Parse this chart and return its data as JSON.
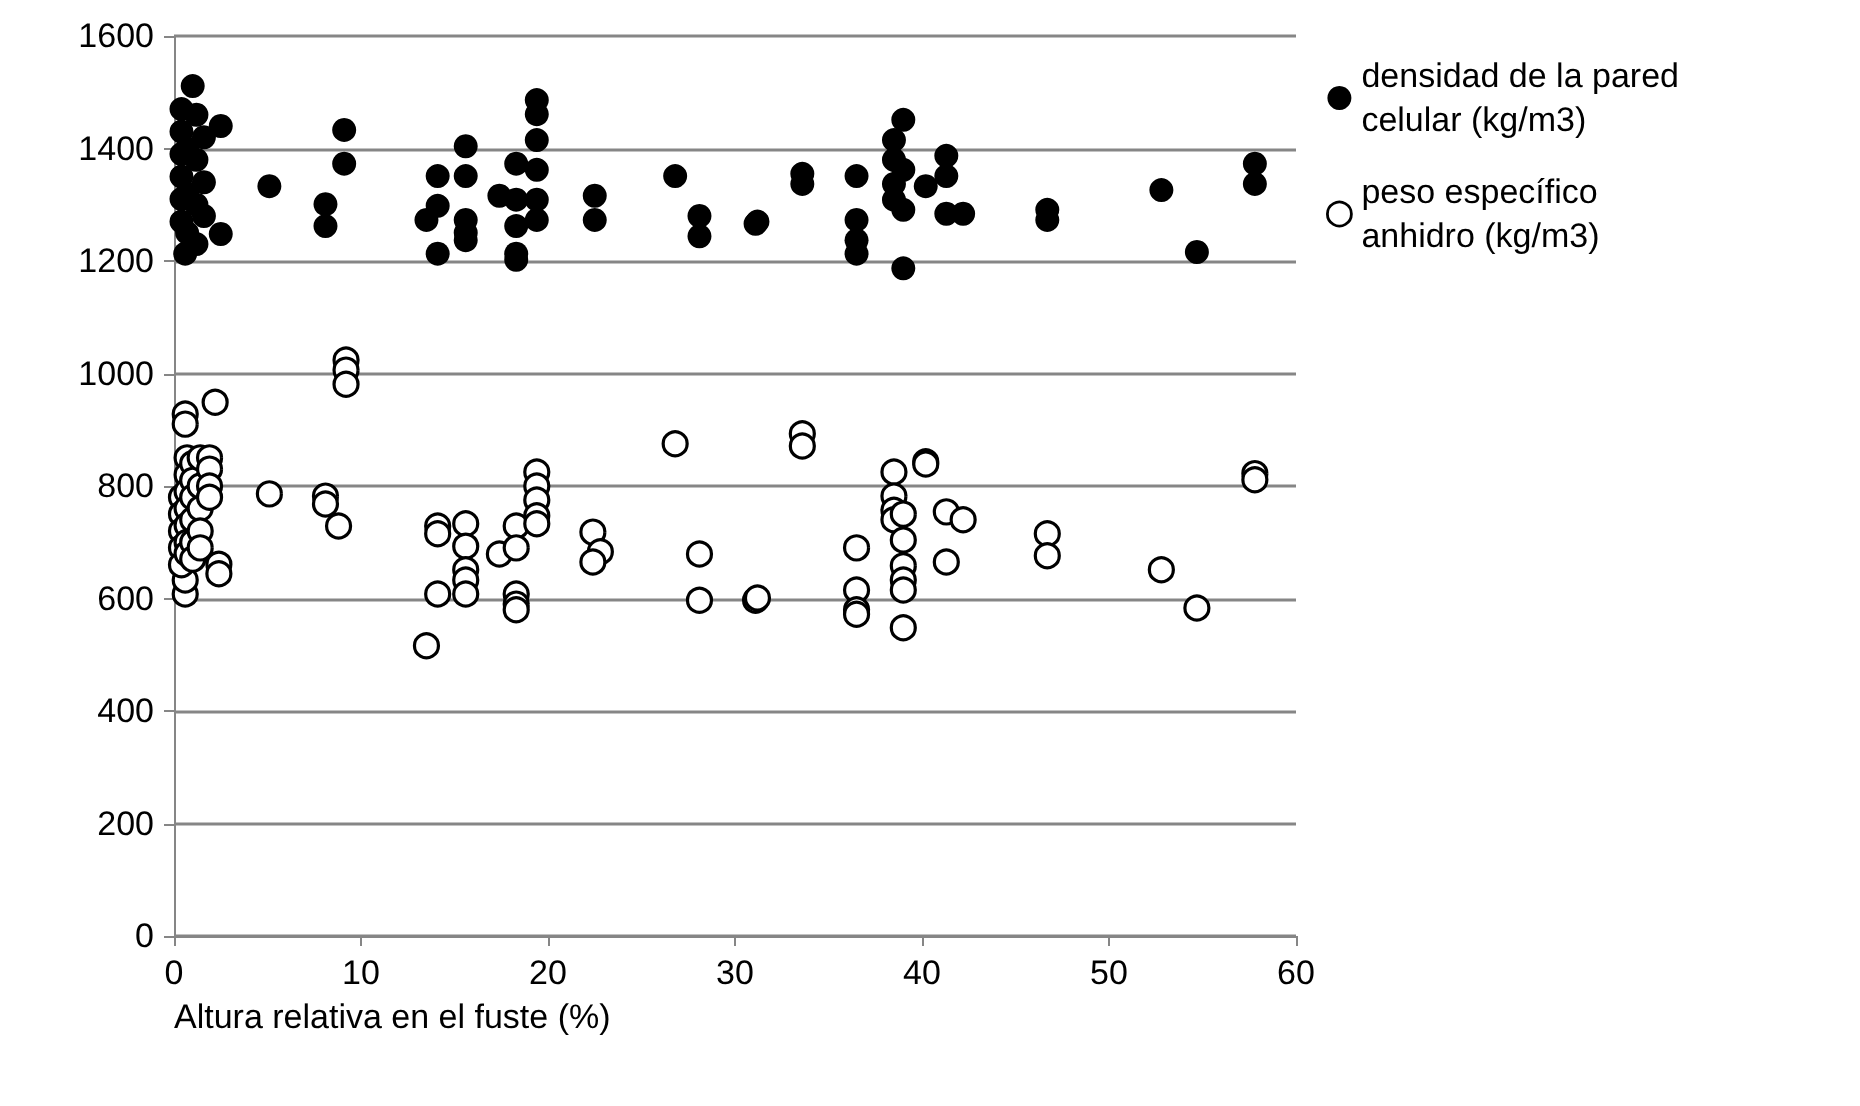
{
  "chart_data": {
    "type": "scatter",
    "xlabel": "Altura relativa en el fuste (%)",
    "xlim": [
      0,
      60
    ],
    "xticks": [
      0,
      10,
      20,
      30,
      40,
      50,
      60
    ],
    "ylim": [
      0,
      1600
    ],
    "yticks": [
      0,
      200,
      400,
      600,
      800,
      {
        "value": 1000,
        "label": "1000"
      },
      {
        "value": 1200,
        "label": "1200"
      },
      {
        "value": 1400,
        "label": "1400"
      },
      {
        "value": 1600,
        "label": "1600"
      }
    ],
    "grid": "y",
    "legend": "top right",
    "marker": "circle",
    "series": [
      {
        "name": "densidad de la pared celular (kg/m3)",
        "color": "#000000",
        "x": [
          0.6,
          0.4,
          0.4,
          0.4,
          0.4,
          0.4,
          0.4,
          1.0,
          0.7,
          0.7,
          0.7,
          1.2,
          1.2,
          1.2,
          1.2,
          1.6,
          1.6,
          1.6,
          2.5,
          2.5,
          5.1,
          9.1,
          9.1,
          8.1,
          8.1,
          14.1,
          14.1,
          13.5,
          14.1,
          15.6,
          15.6,
          15.6,
          15.6,
          15.6,
          17.4,
          18.3,
          18.3,
          18.3,
          18.3,
          18.3,
          19.4,
          19.4,
          19.4,
          19.4,
          19.4,
          19.4,
          22.5,
          22.5,
          26.8,
          28.1,
          28.1,
          31.1,
          31.2,
          33.6,
          33.6,
          36.5,
          36.5,
          36.5,
          36.5,
          38.5,
          38.5,
          38.5,
          38.5,
          39.0,
          39.0,
          39.0,
          39.0,
          40.2,
          41.3,
          41.3,
          41.3,
          42.2,
          46.7,
          46.7,
          52.8,
          54.7,
          57.8,
          57.8
        ],
        "values": [
          1213,
          1270,
          1310,
          1350,
          1390,
          1430,
          1470,
          1511,
          1400,
          1320,
          1250,
          1460,
          1380,
          1300,
          1230,
          1420,
          1340,
          1280,
          1440,
          1248,
          1333,
          1433,
          1373,
          1301,
          1262,
          1351,
          1213,
          1273,
          1298,
          1404,
          1351,
          1273,
          1250,
          1237,
          1316,
          1373,
          1309,
          1262,
          1213,
          1202,
          1486,
          1461,
          1415,
          1362,
          1309,
          1273,
          1316,
          1273,
          1351,
          1280,
          1244,
          1266,
          1270,
          1355,
          1337,
          1351,
          1273,
          1237,
          1213,
          1415,
          1380,
          1337,
          1309,
          1451,
          1362,
          1291,
          1187,
          1333,
          1387,
          1351,
          1284,
          1284,
          1291,
          1273,
          1326,
          1216,
          1373,
          1337
        ]
      },
      {
        "name": "peso específico anhidro (kg/m3)",
        "color": "#000000",
        "marker": "open circle",
        "x": [
          0.6,
          0.6,
          2.2,
          9.2,
          9.2,
          9.2,
          5.1,
          8.1,
          8.1,
          8.8,
          2.4,
          2.4,
          0.6,
          0.6,
          0.4,
          0.4,
          0.4,
          0.4,
          0.4,
          0.7,
          0.7,
          0.7,
          0.7,
          0.7,
          0.7,
          0.7,
          1.0,
          1.0,
          1.0,
          1.0,
          1.0,
          1.0,
          1.4,
          1.4,
          1.4,
          1.4,
          1.4,
          1.9,
          1.9,
          1.9,
          1.9,
          13.5,
          14.1,
          14.1,
          14.1,
          15.6,
          15.6,
          15.6,
          15.6,
          15.6,
          17.4,
          18.3,
          18.3,
          18.3,
          18.3,
          18.3,
          19.4,
          19.4,
          19.4,
          19.4,
          19.4,
          22.4,
          22.8,
          22.4,
          26.8,
          28.1,
          28.1,
          31.1,
          31.2,
          33.6,
          33.6,
          36.5,
          36.5,
          36.5,
          36.5,
          38.5,
          38.5,
          38.5,
          38.5,
          39.0,
          39.0,
          39.0,
          39.0,
          39.0,
          39.0,
          40.2,
          40.2,
          41.3,
          41.3,
          42.2,
          46.7,
          46.7,
          52.8,
          54.7,
          57.8,
          57.8
        ],
        "values": [
          928,
          910,
          949,
          1024,
          1006,
          981,
          786,
          782,
          768,
          729,
          661,
          644,
          608,
          633,
          780,
          750,
          720,
          690,
          660,
          850,
          820,
          790,
          760,
          730,
          700,
          680,
          840,
          810,
          780,
          740,
          700,
          670,
          850,
          800,
          760,
          720,
          690,
          850,
          830,
          800,
          780,
          516,
          729,
          715,
          608,
          733,
          693,
          651,
          633,
          608,
          679,
          729,
          690,
          608,
          590,
          580,
          825,
          800,
          775,
          747,
          733,
          718,
          683,
          665,
          875,
          679,
          597,
          597,
          601,
          893,
          871,
          690,
          615,
          580,
          572,
          825,
          782,
          757,
          740,
          750,
          704,
          658,
          633,
          615,
          548,
          843,
          839,
          754,
          665,
          740,
          715,
          676,
          651,
          583,
          822,
          811
        ]
      }
    ]
  }
}
